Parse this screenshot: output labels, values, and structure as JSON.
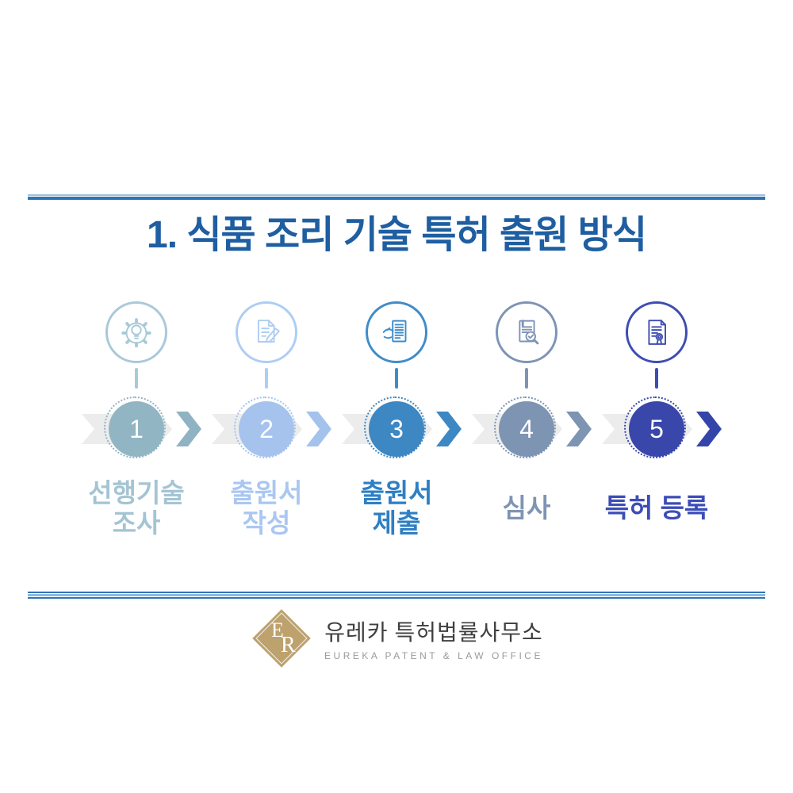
{
  "title": "1. 식품 조리 기술 특허 출원 방식",
  "process_steps": [
    {
      "number": "1",
      "label_lines": [
        "선행기술",
        "조사"
      ],
      "icon": "lightbulb-gear-icon",
      "circle_color": "#92b5c3",
      "icon_color": "#a9c9d8",
      "label_color": "#a4c4d3",
      "chevron_color": "#8fb3c2"
    },
    {
      "number": "2",
      "label_lines": [
        "출원서",
        "작성"
      ],
      "icon": "document-pencil-icon",
      "circle_color": "#a5c3ed",
      "icon_color": "#aecdf4",
      "label_color": "#aac7f1",
      "chevron_color": "#a3c2ec"
    },
    {
      "number": "3",
      "label_lines": [
        "출원서",
        "제출"
      ],
      "icon": "document-submit-icon",
      "circle_color": "#3d87c3",
      "icon_color": "#3f8cc9",
      "label_color": "#2e7fc4",
      "chevron_color": "#3d87c3"
    },
    {
      "number": "4",
      "label_lines": [
        "심사"
      ],
      "icon": "document-review-icon",
      "circle_color": "#7d94b3",
      "icon_color": "#7d94b5",
      "label_color": "#7e94b3",
      "chevron_color": "#7d94b3"
    },
    {
      "number": "5",
      "label_lines": [
        "특허 등록"
      ],
      "icon": "certificate-icon",
      "circle_color": "#3947ab",
      "icon_color": "#3d4db3",
      "label_color": "#3c4db8",
      "chevron_color": "#3445a9"
    }
  ],
  "footer": {
    "logo_monogram_top": "E",
    "logo_monogram_bottom": "R",
    "company_name_ko": "유레카 특허법률사무소",
    "company_name_en": "EUREKA PATENT & LAW OFFICE"
  },
  "colors": {
    "title": "#1e5ea1",
    "divider_dark": "#2e75b6",
    "divider_light": "#a2c0dd",
    "divider_mid": "#8fb8e0",
    "band_gray": "#ececec",
    "logo_gold": "#bda26e",
    "company_ko_text": "#3f3f3f",
    "company_en_text": "#9a9a9a",
    "background": "#ffffff"
  }
}
